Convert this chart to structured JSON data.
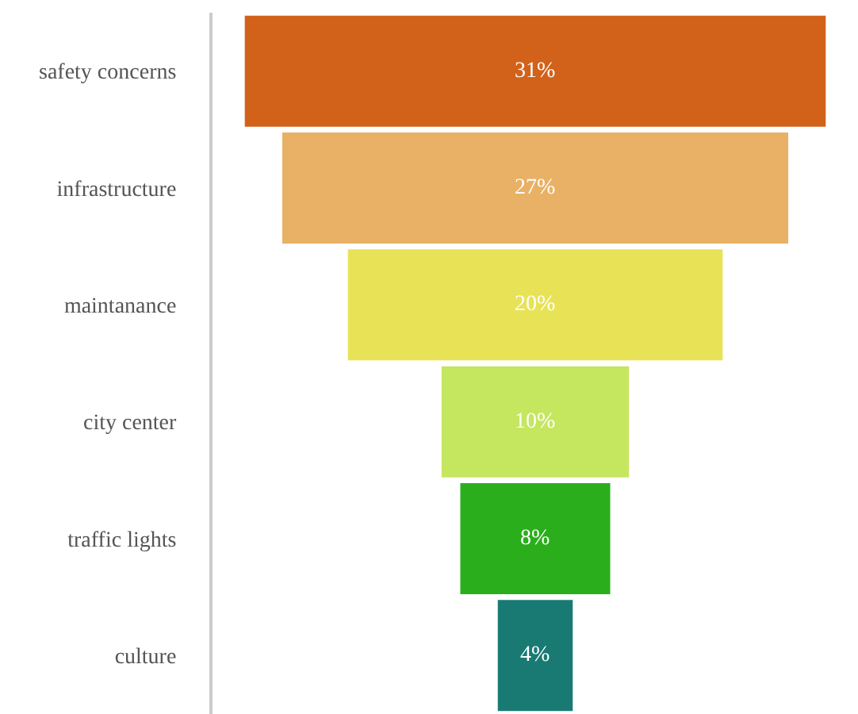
{
  "chart_data": {
    "type": "other",
    "categories": [
      "safety concerns",
      "infrastructure",
      "maintanance",
      "city center",
      "traffic lights",
      "culture"
    ],
    "values": [
      31,
      27,
      20,
      10,
      8,
      4
    ],
    "value_labels": [
      "31%",
      "27%",
      "20%",
      "10%",
      "8%",
      "4%"
    ],
    "colors": [
      "#d2621a",
      "#e8b165",
      "#e8e257",
      "#c5e65f",
      "#2aae1b",
      "#197a74"
    ]
  }
}
